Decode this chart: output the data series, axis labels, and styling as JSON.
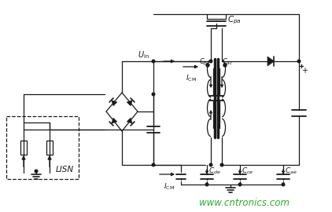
{
  "bg_color": "#ffffff",
  "line_color": "#1a1a1a",
  "watermark_text": "www.cntronics.com",
  "watermark_color": "#22aa22",
  "watermark_fontsize": 8.5,
  "fig_width": 4.22,
  "fig_height": 2.7,
  "dpi": 100
}
